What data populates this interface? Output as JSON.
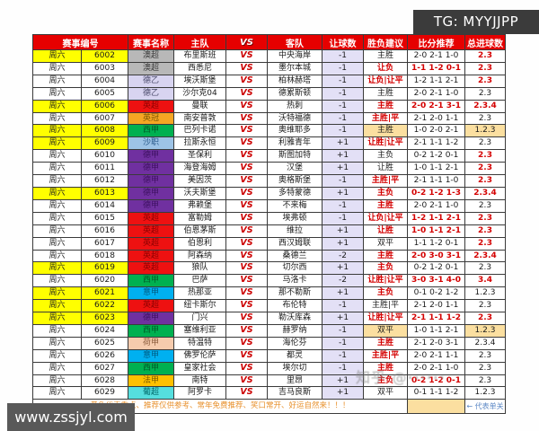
{
  "tg_badge": "TG: MYYJJPP",
  "site_watermark": "www.zssjyl.com",
  "zhihu_watermark": "知乎 @······",
  "colors": {
    "header_bg": "#e60000",
    "red_text": "#d40000",
    "yellow_row": "#ffff00",
    "handicap_bg": "#e3e0f6",
    "highlight_bg": "#fbdfa0",
    "badge_bg": "#3b3b3b"
  },
  "table": {
    "headers": {
      "match_no": "赛事编号",
      "league": "赛事名称",
      "home": "主队",
      "vs": "VS",
      "away": "客队",
      "handicap": "让球数",
      "advice": "胜负建议",
      "score": "比分推荐",
      "goals": "总进球数"
    },
    "league_colors": {
      "澳超": {
        "bg": "#b8b8b8",
        "fg": "#3a3a3a"
      },
      "德乙": {
        "bg": "#d8d4f0",
        "fg": "#4a4a6a"
      },
      "英超": {
        "bg": "#ee1111",
        "fg": "#8a0000"
      },
      "英冠": {
        "bg": "#f5a623",
        "fg": "#7a5500"
      },
      "西甲": {
        "bg": "#00b050",
        "fg": "#005a28"
      },
      "沙职": {
        "bg": "#9dc3e6",
        "fg": "#2a5a8a"
      },
      "德甲": {
        "bg": "#7030a0",
        "fg": "#3d1060"
      },
      "意甲": {
        "bg": "#00b0f0",
        "fg": "#005a80"
      },
      "荷甲": {
        "bg": "#f6cbad",
        "fg": "#8a5a3a"
      },
      "法甲": {
        "bg": "#ffc000",
        "fg": "#7a5a00"
      },
      "葡超": {
        "bg": "#55dede",
        "fg": "#006a6a"
      }
    },
    "vs_label": "VS",
    "rows": [
      {
        "day": "周六",
        "no": "6002",
        "league": "澳超",
        "home": "布里斯班",
        "away": "中央海岸",
        "handicap": "-1",
        "advice": "主胜",
        "score": "2-0 2-1 1-0",
        "goals": "2.3",
        "yellow": true,
        "advice_red": false,
        "score_red": false,
        "goals_red": true,
        "highlight": false
      },
      {
        "day": "周六",
        "no": "6003",
        "league": "澳超",
        "home": "西悉尼",
        "away": "墨尔本城",
        "handicap": "-1",
        "advice": "让负",
        "score": "1-1 1-2 0-1",
        "goals": "2.3",
        "yellow": false,
        "advice_red": true,
        "score_red": true,
        "goals_red": true,
        "highlight": false
      },
      {
        "day": "周六",
        "no": "6004",
        "league": "德乙",
        "home": "埃沃斯堡",
        "away": "柏林赫塔",
        "handicap": "-1",
        "advice": "让负|让平",
        "score": "1-2 1-1 2-1",
        "goals": "2.3",
        "yellow": false,
        "advice_red": true,
        "score_red": false,
        "goals_red": true,
        "highlight": false
      },
      {
        "day": "周六",
        "no": "6005",
        "league": "德乙",
        "home": "沙尔克04",
        "away": "德累斯顿",
        "handicap": "-1",
        "advice": "主胜",
        "score": "2-0 2-1 1-0",
        "goals": "2.3",
        "yellow": false,
        "advice_red": false,
        "score_red": false,
        "goals_red": false,
        "highlight": false
      },
      {
        "day": "周六",
        "no": "6006",
        "league": "英超",
        "home": "曼联",
        "away": "热刺",
        "handicap": "-1",
        "advice": "主胜",
        "score": "2-0 2-1 3-1",
        "goals": "2.3.4",
        "yellow": true,
        "advice_red": true,
        "score_red": true,
        "goals_red": true,
        "highlight": false
      },
      {
        "day": "周六",
        "no": "6007",
        "league": "英冠",
        "home": "南安普敦",
        "away": "沃特福德",
        "handicap": "-1",
        "advice": "主胜|平",
        "score": "2-1 2-0 1-1",
        "goals": "2.3",
        "yellow": false,
        "advice_red": true,
        "score_red": false,
        "goals_red": false,
        "highlight": false
      },
      {
        "day": "周六",
        "no": "6008",
        "league": "西甲",
        "home": "巴列卡诺",
        "away": "奥维耶多",
        "handicap": "-1",
        "advice": "主胜",
        "score": "1-0 2-0 2-1",
        "goals": "1.2.3",
        "yellow": true,
        "advice_red": false,
        "score_red": false,
        "goals_red": false,
        "highlight": true
      },
      {
        "day": "周六",
        "no": "6009",
        "league": "沙职",
        "home": "拉斯永恒",
        "away": "利雅青年",
        "handicap": "+1",
        "advice": "让胜|让平",
        "score": "2-1 1-1 1-2",
        "goals": "2.3",
        "yellow": true,
        "advice_red": true,
        "score_red": false,
        "goals_red": false,
        "highlight": false
      },
      {
        "day": "周六",
        "no": "6010",
        "league": "德甲",
        "home": "圣保利",
        "away": "斯图加特",
        "handicap": "+1",
        "advice": "主负",
        "score": "0-2 1-2 0-1",
        "goals": "2.3",
        "yellow": false,
        "advice_red": false,
        "score_red": false,
        "goals_red": true,
        "highlight": false
      },
      {
        "day": "周六",
        "no": "6011",
        "league": "德甲",
        "home": "海登海姆",
        "away": "汉堡",
        "handicap": "+1",
        "advice": "让胜",
        "score": "1-0 1-1 2-1",
        "goals": "2.3",
        "yellow": false,
        "advice_red": false,
        "score_red": false,
        "goals_red": true,
        "highlight": false
      },
      {
        "day": "周六",
        "no": "6012",
        "league": "德甲",
        "home": "美因茨",
        "away": "奥格斯堡",
        "handicap": "-1",
        "advice": "主胜|平",
        "score": "2-1 1-1 1-0",
        "goals": "2.3",
        "yellow": false,
        "advice_red": true,
        "score_red": false,
        "goals_red": true,
        "highlight": false
      },
      {
        "day": "周六",
        "no": "6013",
        "league": "德甲",
        "home": "沃夫斯堡",
        "away": "多特蒙德",
        "handicap": "+1",
        "advice": "主负",
        "score": "0-2 1-2 1-3",
        "goals": "2.3.4",
        "yellow": true,
        "advice_red": true,
        "score_red": true,
        "goals_red": true,
        "highlight": false
      },
      {
        "day": "周六",
        "no": "6014",
        "league": "德甲",
        "home": "弗赖堡",
        "away": "不来梅",
        "handicap": "-1",
        "advice": "主胜",
        "score": "2-0 2-1 1-0",
        "goals": "2.3",
        "yellow": false,
        "advice_red": true,
        "score_red": false,
        "goals_red": false,
        "highlight": false
      },
      {
        "day": "周六",
        "no": "6015",
        "league": "英超",
        "home": "富勒姆",
        "away": "埃弗顿",
        "handicap": "-1",
        "advice": "让负|让平",
        "score": "1-2 1-1 2-1",
        "goals": "2.3",
        "yellow": false,
        "advice_red": true,
        "score_red": true,
        "goals_red": true,
        "highlight": false
      },
      {
        "day": "周六",
        "no": "6016",
        "league": "英超",
        "home": "伯恩茅斯",
        "away": "维拉",
        "handicap": "+1",
        "advice": "让胜",
        "score": "1-0 1-1 2-1",
        "goals": "2.3",
        "yellow": false,
        "advice_red": true,
        "score_red": true,
        "goals_red": true,
        "highlight": false
      },
      {
        "day": "周六",
        "no": "6017",
        "league": "英超",
        "home": "伯恩利",
        "away": "西汉姆联",
        "handicap": "+1",
        "advice": "双平",
        "score": "1-1 1-2 0-1",
        "goals": "2.3",
        "yellow": false,
        "advice_red": false,
        "score_red": false,
        "goals_red": true,
        "highlight": false
      },
      {
        "day": "周六",
        "no": "6018",
        "league": "英超",
        "home": "阿森纳",
        "away": "桑德兰",
        "handicap": "-2",
        "advice": "主胜",
        "score": "2-0 3-0 3-1",
        "goals": "2.3.4",
        "yellow": false,
        "advice_red": true,
        "score_red": true,
        "goals_red": true,
        "highlight": false
      },
      {
        "day": "周六",
        "no": "6019",
        "league": "英超",
        "home": "狼队",
        "away": "切尔西",
        "handicap": "+1",
        "advice": "主负",
        "score": "0-2 1-2 0-1",
        "goals": "2.3",
        "yellow": true,
        "advice_red": true,
        "score_red": false,
        "goals_red": false,
        "highlight": false
      },
      {
        "day": "周六",
        "no": "6020",
        "league": "西甲",
        "home": "巴萨",
        "away": "马洛卡",
        "handicap": "-2",
        "advice": "让胜|让平",
        "score": "3-0 3-1 4-0",
        "goals": "3.4",
        "yellow": false,
        "advice_red": true,
        "score_red": true,
        "goals_red": true,
        "highlight": false
      },
      {
        "day": "周六",
        "no": "6021",
        "league": "意甲",
        "home": "热那亚",
        "away": "那不勒斯",
        "handicap": "+1",
        "advice": "主负",
        "score": "0-1 0-2 1-2",
        "goals": "1.2.3",
        "yellow": true,
        "advice_red": true,
        "score_red": false,
        "goals_red": false,
        "highlight": false
      },
      {
        "day": "周六",
        "no": "6022",
        "league": "英超",
        "home": "纽卡斯尔",
        "away": "布伦特",
        "handicap": "-1",
        "advice": "主胜|平",
        "score": "2-1 2-0 1-1",
        "goals": "2.3",
        "yellow": true,
        "advice_red": false,
        "score_red": false,
        "goals_red": false,
        "highlight": false
      },
      {
        "day": "周六",
        "no": "6023",
        "league": "德甲",
        "home": "门兴",
        "away": "勒沃库森",
        "handicap": "+1",
        "advice": "让胜|让平",
        "score": "2-1 1-1 1-2",
        "goals": "2.3",
        "yellow": true,
        "advice_red": true,
        "score_red": true,
        "goals_red": true,
        "highlight": false
      },
      {
        "day": "周六",
        "no": "6024",
        "league": "西甲",
        "home": "塞维利亚",
        "away": "赫罗纳",
        "handicap": "-1",
        "advice": "双平",
        "score": "1-0 1-1 2-1",
        "goals": "1.2.3",
        "yellow": false,
        "advice_red": false,
        "score_red": false,
        "goals_red": false,
        "highlight": true
      },
      {
        "day": "周六",
        "no": "6025",
        "league": "荷甲",
        "home": "特温特",
        "away": "海伦芬",
        "handicap": "-1",
        "advice": "主胜",
        "score": "2-1 2-0 3-1",
        "goals": "2.3.4",
        "yellow": false,
        "advice_red": true,
        "score_red": false,
        "goals_red": false,
        "highlight": false
      },
      {
        "day": "周六",
        "no": "6026",
        "league": "意甲",
        "home": "佛罗伦萨",
        "away": "都灵",
        "handicap": "-1",
        "advice": "主胜|平",
        "score": "2-0 2-1 1-1",
        "goals": "2.3",
        "yellow": false,
        "advice_red": true,
        "score_red": false,
        "goals_red": false,
        "highlight": false
      },
      {
        "day": "周六",
        "no": "6027",
        "league": "西甲",
        "home": "皇家社会",
        "away": "埃尔切",
        "handicap": "-1",
        "advice": "主胜",
        "score": "2-0 2-1 1-0",
        "goals": "2.3",
        "yellow": false,
        "advice_red": true,
        "score_red": false,
        "goals_red": false,
        "highlight": false
      },
      {
        "day": "周六",
        "no": "6028",
        "league": "法甲",
        "home": "南特",
        "away": "里昂",
        "handicap": "+1",
        "advice": "主负",
        "score": "0-2 1-2 0-1",
        "goals": "2.3",
        "yellow": false,
        "advice_red": true,
        "score_red": true,
        "goals_red": false,
        "highlight": false
      },
      {
        "day": "周六",
        "no": "6029",
        "league": "葡超",
        "home": "阿罗卡",
        "away": "吉马良斯",
        "handicap": "+1",
        "advice": "双平",
        "score": "0-1 1-1 1-2",
        "goals": "1.2.3",
        "yellow": false,
        "advice_red": false,
        "score_red": false,
        "goals_red": false,
        "highlight": false
      }
    ],
    "footer": {
      "note": "黄色代表重点、推荐仅供参考、常年免费推荐、笑口常开、好运自然来！！！",
      "legend": "← 代表单关"
    }
  }
}
